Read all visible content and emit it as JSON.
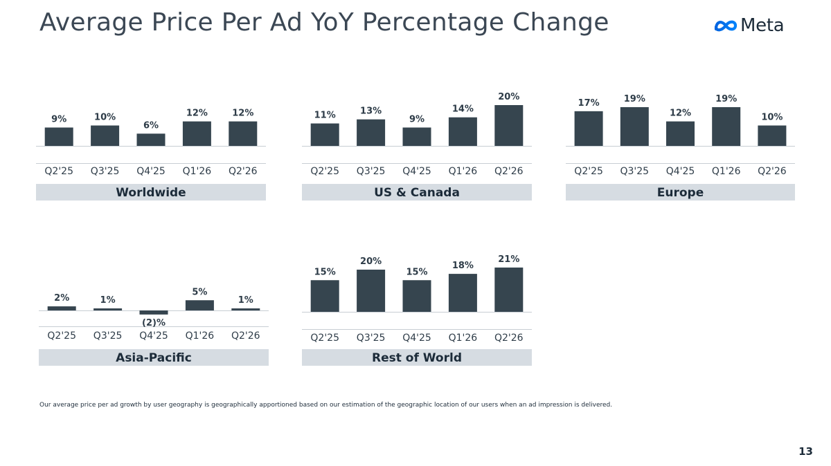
{
  "slide": {
    "title": "Average Price Per Ad YoY Percentage Change",
    "logo_text": "Meta",
    "logo_icon": "meta-infinity-icon",
    "footnote": "Our average price per ad growth by user geography is geographically apportioned based on our estimation of the geographic location of our users when an ad impression is delivered.",
    "page_number": "13"
  },
  "colors": {
    "bar": "#36454f",
    "label_band": "#d6dce2",
    "axis": "#c7cdd3",
    "logo_blue": "#0668e1"
  },
  "chart_data": [
    {
      "type": "bar",
      "title": "Worldwide",
      "categories": [
        "Q2'25",
        "Q3'25",
        "Q4'25",
        "Q1'26",
        "Q2'26"
      ],
      "values": [
        9,
        10,
        6,
        12,
        12
      ],
      "data_labels": [
        "9%",
        "10%",
        "6%",
        "12%",
        "12%"
      ]
    },
    {
      "type": "bar",
      "title": "US & Canada",
      "categories": [
        "Q2'25",
        "Q3'25",
        "Q4'25",
        "Q1'26",
        "Q2'26"
      ],
      "values": [
        11,
        13,
        9,
        14,
        20
      ],
      "data_labels": [
        "11%",
        "13%",
        "9%",
        "14%",
        "20%"
      ]
    },
    {
      "type": "bar",
      "title": "Europe",
      "categories": [
        "Q2'25",
        "Q3'25",
        "Q4'25",
        "Q1'26",
        "Q2'26"
      ],
      "values": [
        17,
        19,
        12,
        19,
        10
      ],
      "data_labels": [
        "17%",
        "19%",
        "12%",
        "19%",
        "10%"
      ]
    },
    {
      "type": "bar",
      "title": "Asia-Pacific",
      "categories": [
        "Q2'25",
        "Q3'25",
        "Q4'25",
        "Q1'26",
        "Q2'26"
      ],
      "values": [
        2,
        1,
        -2,
        5,
        1
      ],
      "data_labels": [
        "2%",
        "1%",
        "(2)%",
        "5%",
        "1%"
      ]
    },
    {
      "type": "bar",
      "title": "Rest of World",
      "categories": [
        "Q2'25",
        "Q3'25",
        "Q4'25",
        "Q1'26",
        "Q2'26"
      ],
      "values": [
        15,
        20,
        15,
        18,
        21
      ],
      "data_labels": [
        "15%",
        "20%",
        "15%",
        "18%",
        "21%"
      ]
    }
  ]
}
